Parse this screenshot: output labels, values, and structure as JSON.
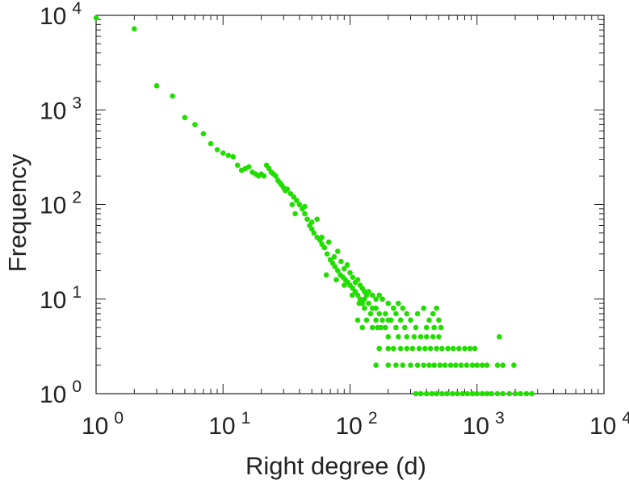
{
  "chart_data": {
    "type": "scatter",
    "title": "",
    "xlabel": "Right degree (d)",
    "ylabel": "Frequency",
    "x_scale": "log",
    "y_scale": "log",
    "xlim": [
      1,
      10000
    ],
    "ylim": [
      1,
      10000
    ],
    "grid": false,
    "legend": "none",
    "marker_color": "#22dd00",
    "x_ticks": [
      {
        "base": "10",
        "exp": "0"
      },
      {
        "base": "10",
        "exp": "1"
      },
      {
        "base": "10",
        "exp": "2"
      },
      {
        "base": "10",
        "exp": "3"
      },
      {
        "base": "10",
        "exp": "4"
      }
    ],
    "y_ticks": [
      {
        "base": "10",
        "exp": "0"
      },
      {
        "base": "10",
        "exp": "1"
      },
      {
        "base": "10",
        "exp": "2"
      },
      {
        "base": "10",
        "exp": "3"
      },
      {
        "base": "10",
        "exp": "4"
      }
    ],
    "points": [
      [
        1,
        9400
      ],
      [
        2,
        7200
      ],
      [
        3,
        1800
      ],
      [
        4,
        1400
      ],
      [
        5,
        830
      ],
      [
        6,
        700
      ],
      [
        7,
        560
      ],
      [
        8,
        440
      ],
      [
        9,
        380
      ],
      [
        10,
        350
      ],
      [
        11,
        330
      ],
      [
        12,
        320
      ],
      [
        13,
        260
      ],
      [
        14,
        230
      ],
      [
        15,
        240
      ],
      [
        16,
        250
      ],
      [
        17,
        220
      ],
      [
        18,
        210
      ],
      [
        19,
        200
      ],
      [
        20,
        210
      ],
      [
        21,
        200
      ],
      [
        22,
        260
      ],
      [
        23,
        240
      ],
      [
        24,
        220
      ],
      [
        25,
        210
      ],
      [
        26,
        200
      ],
      [
        27,
        180
      ],
      [
        28,
        170
      ],
      [
        29,
        160
      ],
      [
        30,
        150
      ],
      [
        31,
        140
      ],
      [
        32,
        145
      ],
      [
        34,
        130
      ],
      [
        35,
        100
      ],
      [
        36,
        120
      ],
      [
        38,
        110
      ],
      [
        40,
        100
      ],
      [
        42,
        90
      ],
      [
        44,
        80
      ],
      [
        46,
        70
      ],
      [
        48,
        60
      ],
      [
        50,
        55
      ],
      [
        52,
        50
      ],
      [
        55,
        45
      ],
      [
        58,
        42
      ],
      [
        60,
        38
      ],
      [
        63,
        35
      ],
      [
        66,
        30
      ],
      [
        70,
        26
      ],
      [
        73,
        24
      ],
      [
        76,
        22
      ],
      [
        80,
        20
      ],
      [
        84,
        18
      ],
      [
        88,
        17
      ],
      [
        92,
        16
      ],
      [
        96,
        15
      ],
      [
        100,
        14
      ],
      [
        105,
        13
      ],
      [
        110,
        12
      ],
      [
        115,
        11
      ],
      [
        120,
        10
      ],
      [
        125,
        9
      ],
      [
        130,
        10
      ],
      [
        140,
        9
      ],
      [
        150,
        8
      ],
      [
        160,
        8
      ],
      [
        170,
        7
      ],
      [
        180,
        6
      ],
      [
        190,
        7
      ],
      [
        200,
        6
      ],
      [
        37,
        80
      ],
      [
        44,
        95
      ],
      [
        50,
        65
      ],
      [
        55,
        70
      ],
      [
        60,
        45
      ],
      [
        68,
        40
      ],
      [
        75,
        28
      ],
      [
        80,
        32
      ],
      [
        85,
        25
      ],
      [
        90,
        21
      ],
      [
        95,
        23
      ],
      [
        100,
        19
      ],
      [
        105,
        17
      ],
      [
        110,
        15
      ],
      [
        115,
        16
      ],
      [
        120,
        14
      ],
      [
        125,
        13
      ],
      [
        130,
        12
      ],
      [
        135,
        11
      ],
      [
        140,
        12
      ],
      [
        150,
        11
      ],
      [
        160,
        10
      ],
      [
        170,
        11
      ],
      [
        180,
        10
      ],
      [
        200,
        9
      ],
      [
        220,
        8
      ],
      [
        240,
        9
      ],
      [
        260,
        8
      ],
      [
        65,
        18
      ],
      [
        78,
        16
      ],
      [
        90,
        14
      ],
      [
        104,
        11
      ],
      [
        118,
        9
      ],
      [
        130,
        8
      ],
      [
        145,
        7
      ],
      [
        160,
        6
      ],
      [
        175,
        5
      ],
      [
        115,
        6
      ],
      [
        125,
        5
      ],
      [
        135,
        6
      ],
      [
        150,
        5
      ],
      [
        165,
        5
      ],
      [
        190,
        5
      ],
      [
        210,
        6
      ],
      [
        230,
        7
      ],
      [
        250,
        6
      ],
      [
        280,
        7
      ],
      [
        300,
        6
      ],
      [
        340,
        7
      ],
      [
        380,
        8
      ],
      [
        420,
        6
      ],
      [
        450,
        7
      ],
      [
        480,
        8
      ],
      [
        500,
        6
      ],
      [
        230,
        5
      ],
      [
        270,
        5
      ],
      [
        330,
        5
      ],
      [
        400,
        5
      ],
      [
        460,
        5
      ],
      [
        520,
        5
      ],
      [
        170,
        3
      ],
      [
        200,
        3
      ],
      [
        220,
        3
      ],
      [
        250,
        3
      ],
      [
        280,
        3
      ],
      [
        310,
        3
      ],
      [
        350,
        3
      ],
      [
        390,
        3
      ],
      [
        430,
        3
      ],
      [
        480,
        3
      ],
      [
        530,
        3
      ],
      [
        590,
        3
      ],
      [
        650,
        3
      ],
      [
        720,
        3
      ],
      [
        800,
        3
      ],
      [
        880,
        3
      ],
      [
        960,
        3
      ],
      [
        200,
        4
      ],
      [
        240,
        4
      ],
      [
        280,
        4
      ],
      [
        320,
        4
      ],
      [
        360,
        4
      ],
      [
        400,
        4
      ],
      [
        450,
        4
      ],
      [
        500,
        4
      ],
      [
        1500,
        4
      ],
      [
        160,
        2
      ],
      [
        200,
        2
      ],
      [
        230,
        2
      ],
      [
        260,
        2
      ],
      [
        300,
        2
      ],
      [
        340,
        2
      ],
      [
        380,
        2
      ],
      [
        420,
        2
      ],
      [
        460,
        2
      ],
      [
        510,
        2
      ],
      [
        560,
        2
      ],
      [
        620,
        2
      ],
      [
        680,
        2
      ],
      [
        750,
        2
      ],
      [
        830,
        2
      ],
      [
        920,
        2
      ],
      [
        1000,
        2
      ],
      [
        1100,
        2
      ],
      [
        1200,
        2
      ],
      [
        1450,
        2
      ],
      [
        1600,
        2
      ],
      [
        1950,
        2
      ],
      [
        330,
        1
      ],
      [
        360,
        1
      ],
      [
        400,
        1
      ],
      [
        440,
        1
      ],
      [
        480,
        1
      ],
      [
        530,
        1
      ],
      [
        580,
        1
      ],
      [
        640,
        1
      ],
      [
        700,
        1
      ],
      [
        770,
        1
      ],
      [
        840,
        1
      ],
      [
        920,
        1
      ],
      [
        1000,
        1
      ],
      [
        1100,
        1
      ],
      [
        1200,
        1
      ],
      [
        1300,
        1
      ],
      [
        1450,
        1
      ],
      [
        1600,
        1
      ],
      [
        1800,
        1
      ],
      [
        2000,
        1
      ],
      [
        2200,
        1
      ],
      [
        2450,
        1
      ],
      [
        2700,
        1
      ]
    ]
  }
}
